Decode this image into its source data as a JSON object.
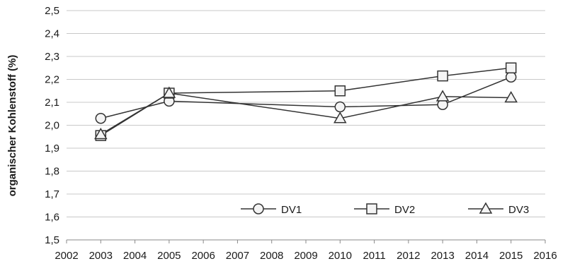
{
  "chart_data": {
    "type": "line",
    "ylabel": "organischer Kohlenstoff  (%)",
    "xlabel": "",
    "title": "",
    "xlim": [
      2002,
      2016
    ],
    "ylim": [
      1.5,
      2.5
    ],
    "x_ticks": [
      "2002",
      "2003",
      "2004",
      "2005",
      "2006",
      "2007",
      "2008",
      "2009",
      "2010",
      "2011",
      "2012",
      "2013",
      "2014",
      "2015",
      "2016"
    ],
    "y_ticks": [
      "1,5",
      "1,6",
      "1,7",
      "1,8",
      "1,9",
      "2,0",
      "2,1",
      "2,2",
      "2,3",
      "2,4",
      "2,5"
    ],
    "grid": true,
    "legend_position": "bottom-right",
    "series": [
      {
        "name": "DV1",
        "marker": "circle",
        "x": [
          2003,
          2005,
          2010,
          2013,
          2015
        ],
        "y": [
          2.03,
          2.105,
          2.08,
          2.09,
          2.21
        ]
      },
      {
        "name": "DV2",
        "marker": "square",
        "x": [
          2003,
          2005,
          2010,
          2013,
          2015
        ],
        "y": [
          1.955,
          2.14,
          2.15,
          2.215,
          2.25
        ]
      },
      {
        "name": "DV3",
        "marker": "triangle",
        "x": [
          2003,
          2005,
          2010,
          2013,
          2015
        ],
        "y": [
          1.96,
          2.14,
          2.03,
          2.125,
          2.12
        ]
      }
    ]
  }
}
